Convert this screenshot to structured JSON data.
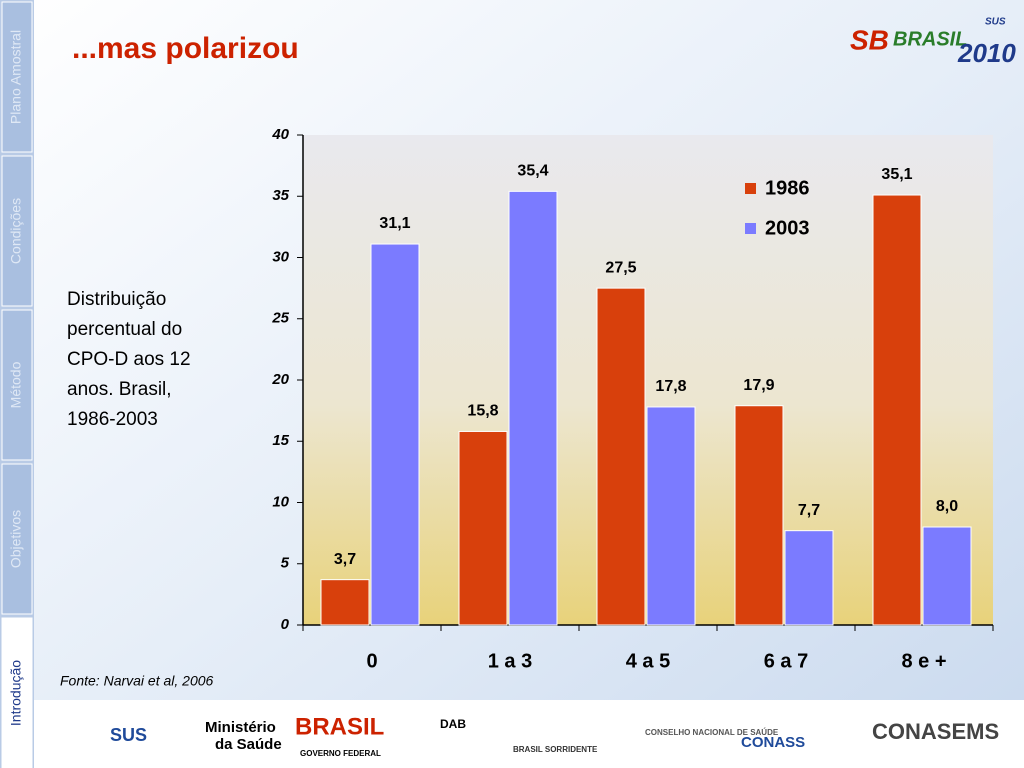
{
  "slide": {
    "title": "...mas polarizou",
    "sidebar": [
      "Plano Amostral",
      "Condições",
      "Método",
      "Objetivos",
      "Introdução"
    ],
    "description": [
      "Distribuição",
      "percentual do",
      "CPO-D aos 12",
      "anos. Brasil,",
      "1986-2003"
    ],
    "source": "Fonte: Narvai et al, 2006",
    "header_logo": [
      "SB",
      "BRASIL",
      "2010",
      "SUS"
    ],
    "footer_logos": [
      "SUS",
      "Ministério",
      "da Saúde",
      "BRASIL",
      "GOVERNO FEDERAL",
      "DAB",
      "BRASIL SORRIDENTE",
      "CONSELHO NACIONAL DE SAÚDE",
      "CONASS",
      "CONASEMS"
    ]
  },
  "chart_data": {
    "type": "bar",
    "categories": [
      "0",
      "1 a 3",
      "4 a 5",
      "6 a 7",
      "8 e +"
    ],
    "series": [
      {
        "name": "1986",
        "color": "#d8400c",
        "values": [
          3.7,
          15.8,
          27.5,
          17.9,
          35.1
        ],
        "value_labels": [
          "3,7",
          "15,8",
          "27,5",
          "17,9",
          "35,1"
        ]
      },
      {
        "name": "2003",
        "color": "#7b7bff",
        "values": [
          31.1,
          35.4,
          17.8,
          7.7,
          8.0
        ],
        "value_labels": [
          "31,1",
          "35,4",
          "17,8",
          "7,7",
          "8,0"
        ]
      }
    ],
    "ylim": [
      0,
      40
    ],
    "yticks": [
      0,
      5,
      10,
      15,
      20,
      25,
      30,
      35,
      40
    ],
    "legend": "upper right"
  }
}
